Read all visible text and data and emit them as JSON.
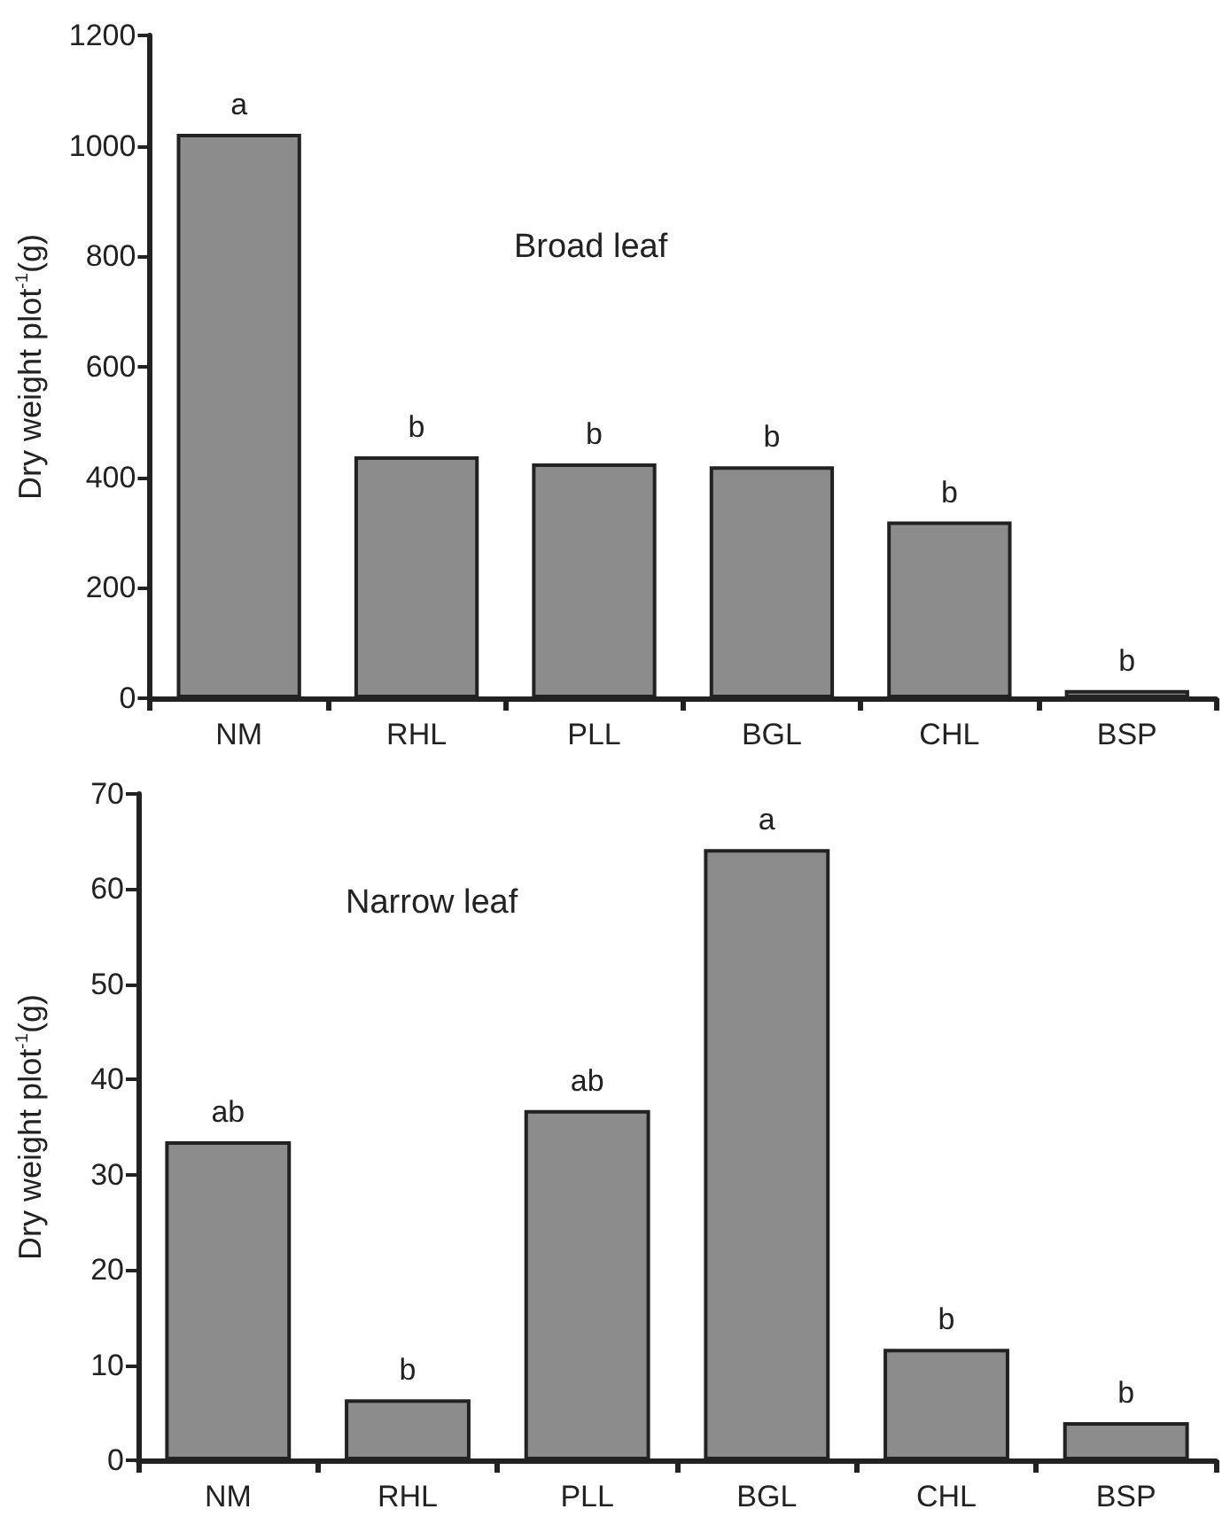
{
  "chart_data": [
    {
      "type": "bar",
      "title": "Broad leaf",
      "ylabel": "Dry weight plot$^{-1}$(g)",
      "categories": [
        "NM",
        "RHL",
        "PLL",
        "BGL",
        "CHL",
        "BSP"
      ],
      "values": [
        1022,
        438,
        425,
        420,
        320,
        15
      ],
      "color": "#8c8c8c",
      "ylim": [
        0,
        1200
      ],
      "yticks": [
        0,
        200,
        400,
        600,
        800,
        1000,
        1200
      ],
      "grid": false,
      "annotations": [
        {
          "text": "a",
          "x": "NM",
          "y": 1022
        },
        {
          "text": "b",
          "x": "RHL",
          "y": 438
        },
        {
          "text": "b",
          "x": "PLL",
          "y": 425
        },
        {
          "text": "b",
          "x": "BGL",
          "y": 420
        },
        {
          "text": "b",
          "x": "CHL",
          "y": 320
        },
        {
          "text": "b",
          "x": "BSP",
          "y": 15
        }
      ]
    },
    {
      "type": "bar",
      "title": "Narrow leaf",
      "ylabel": "Dry weight plot$^{-1}$(g)",
      "categories": [
        "NM",
        "RHL",
        "PLL",
        "BGL",
        "CHL",
        "BSP"
      ],
      "values": [
        33.5,
        6.4,
        36.8,
        64.2,
        11.7,
        4.0
      ],
      "color": "#8c8c8c",
      "ylim": [
        0,
        70
      ],
      "yticks": [
        0,
        10,
        20,
        30,
        40,
        50,
        60,
        70
      ],
      "grid": false,
      "annotations": [
        {
          "text": "ab",
          "x": "NM",
          "y": 33.5
        },
        {
          "text": "b",
          "x": "RHL",
          "y": 6.4
        },
        {
          "text": "ab",
          "x": "PLL",
          "y": 36.8
        },
        {
          "text": "a",
          "x": "BGL",
          "y": 64.2
        },
        {
          "text": "b",
          "x": "CHL",
          "y": 11.7
        },
        {
          "text": "b",
          "x": "BSP",
          "y": 4.0
        }
      ]
    }
  ]
}
